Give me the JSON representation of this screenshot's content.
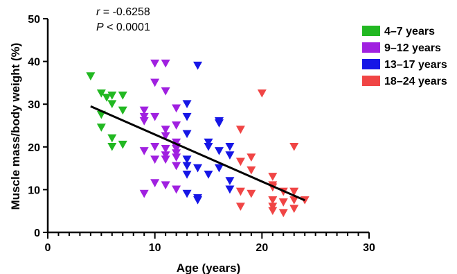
{
  "chart_data": {
    "type": "scatter",
    "xlabel": "Age (years)",
    "ylabel": "Muscle mass/body weight (%)",
    "xlim": [
      0,
      30
    ],
    "ylim": [
      0,
      50
    ],
    "x_ticks": [
      "0",
      "10",
      "20",
      "30"
    ],
    "y_ticks": [
      "0",
      "10",
      "20",
      "30",
      "40",
      "50"
    ],
    "x_minor_step": 1,
    "grid": false,
    "legend_position": "top-right",
    "marker": "down-triangle",
    "annotation": {
      "r_symbol": "r",
      "r_value": " = -0.6258",
      "p_symbol": "P",
      "p_value": " < 0.0001"
    },
    "trend_line": {
      "x": [
        4,
        24
      ],
      "y": [
        29.5,
        7.5
      ],
      "color": "#000000"
    },
    "series": [
      {
        "name": "4–7 years",
        "color": "#22b822",
        "points": [
          [
            4,
            36.5
          ],
          [
            5,
            32.5
          ],
          [
            5,
            27.5
          ],
          [
            5,
            24.5
          ],
          [
            6,
            32
          ],
          [
            6,
            30
          ],
          [
            6,
            22
          ],
          [
            6,
            20
          ],
          [
            7,
            32
          ],
          [
            7,
            28.5
          ],
          [
            7,
            20.5
          ],
          [
            5.5,
            31.5
          ]
        ]
      },
      {
        "name": "9–12 years",
        "color": "#a020e0",
        "points": [
          [
            9,
            28.5
          ],
          [
            9,
            27
          ],
          [
            9,
            26
          ],
          [
            9,
            19
          ],
          [
            9,
            9
          ],
          [
            10,
            39.5
          ],
          [
            10,
            35
          ],
          [
            10,
            27
          ],
          [
            10,
            20
          ],
          [
            10,
            17
          ],
          [
            10,
            11.5
          ],
          [
            11,
            39.5
          ],
          [
            11,
            33
          ],
          [
            11,
            24
          ],
          [
            11,
            22.5
          ],
          [
            11,
            19.5
          ],
          [
            11,
            18
          ],
          [
            11,
            17
          ],
          [
            11,
            11
          ],
          [
            12,
            29
          ],
          [
            12,
            25
          ],
          [
            12,
            21
          ],
          [
            12,
            20
          ],
          [
            12,
            19.5
          ],
          [
            12,
            18.5
          ],
          [
            12,
            17.5
          ],
          [
            12,
            15.5
          ],
          [
            12,
            10
          ]
        ]
      },
      {
        "name": "13–17 years",
        "color": "#1616e6",
        "points": [
          [
            13,
            30
          ],
          [
            13,
            27
          ],
          [
            13,
            23
          ],
          [
            13,
            17
          ],
          [
            13,
            15.5
          ],
          [
            13,
            13.5
          ],
          [
            13,
            9
          ],
          [
            14,
            39
          ],
          [
            14,
            15
          ],
          [
            14,
            8
          ],
          [
            14,
            7.5
          ],
          [
            15,
            21
          ],
          [
            15,
            20
          ],
          [
            15,
            13.5
          ],
          [
            16,
            26
          ],
          [
            16,
            25.5
          ],
          [
            16,
            19
          ],
          [
            16,
            15
          ],
          [
            17,
            20
          ],
          [
            17,
            18
          ],
          [
            17,
            12
          ],
          [
            17,
            10
          ]
        ]
      },
      {
        "name": "18–24 years",
        "color": "#f04545",
        "points": [
          [
            18,
            24
          ],
          [
            18,
            16.5
          ],
          [
            18,
            9.5
          ],
          [
            18,
            6
          ],
          [
            19,
            17.5
          ],
          [
            19,
            14.5
          ],
          [
            19,
            9
          ],
          [
            20,
            32.5
          ],
          [
            21,
            13
          ],
          [
            21,
            11
          ],
          [
            21,
            10.5
          ],
          [
            21,
            7.5
          ],
          [
            21,
            6
          ],
          [
            21,
            5
          ],
          [
            22,
            9.5
          ],
          [
            22,
            7
          ],
          [
            22,
            4.5
          ],
          [
            23,
            20
          ],
          [
            23,
            9.5
          ],
          [
            23,
            7.5
          ],
          [
            23,
            5.5
          ],
          [
            24,
            7.5
          ]
        ]
      }
    ]
  }
}
